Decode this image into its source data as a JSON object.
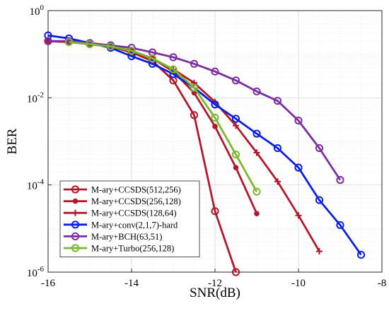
{
  "chart_data": {
    "type": "line",
    "title": "",
    "xlabel": "SNR(dB)",
    "ylabel": "BER",
    "xlim": [
      -16,
      -8
    ],
    "ylim": [
      1e-06,
      1
    ],
    "yscale": "log",
    "grid": true,
    "legend_position": "bottom-left",
    "x_ticks": [
      -16,
      -14,
      -12,
      -10,
      -8
    ],
    "x_tick_labels": [
      "-16",
      "-14",
      "-12",
      "-10",
      "-8"
    ],
    "y_ticks": [
      1e-06,
      0.0001,
      0.01,
      1
    ],
    "y_tick_labels": [
      {
        "base": "10",
        "exp": "-6"
      },
      {
        "base": "10",
        "exp": "-4"
      },
      {
        "base": "10",
        "exp": "-2"
      },
      {
        "base": "10",
        "exp": "0"
      }
    ],
    "series": [
      {
        "name": "M-ary+CCSDS(512,256)",
        "color": "#b2182b",
        "marker": "circle-open",
        "x": [
          -16,
          -15.5,
          -15,
          -14.5,
          -14,
          -13.5,
          -13,
          -12.5,
          -12,
          -11.5
        ],
        "y": [
          0.2,
          0.19,
          0.17,
          0.15,
          0.11,
          0.07,
          0.025,
          0.004,
          2.5e-05,
          1e-06
        ]
      },
      {
        "name": "M-ary+CCSDS(256,128)",
        "color": "#b2182b",
        "marker": "dot",
        "x": [
          -16,
          -15.5,
          -15,
          -14.5,
          -14,
          -13.5,
          -13,
          -12.5,
          -12,
          -11.5,
          -11
        ],
        "y": [
          0.2,
          0.19,
          0.17,
          0.15,
          0.12,
          0.08,
          0.04,
          0.013,
          0.0022,
          0.00025,
          2.2e-05
        ]
      },
      {
        "name": "M-ary+CCSDS(128,64)",
        "color": "#b2182b",
        "marker": "plus",
        "x": [
          -16,
          -15.5,
          -15,
          -14.5,
          -14,
          -13.5,
          -13,
          -12.5,
          -12,
          -11.5,
          -11,
          -10.5,
          -10,
          -9.5
        ],
        "y": [
          0.2,
          0.19,
          0.17,
          0.15,
          0.12,
          0.08,
          0.045,
          0.022,
          0.008,
          0.0023,
          0.00055,
          0.00012,
          2e-05,
          3e-06
        ]
      },
      {
        "name": "M-ary+conv(2,1,7)-hard",
        "color": "#0a1fe0",
        "marker": "circle-open",
        "x": [
          -16,
          -15.5,
          -15,
          -14.5,
          -14,
          -13.5,
          -13,
          -12.5,
          -12,
          -11.5,
          -11,
          -10.5,
          -10,
          -9.5,
          -9,
          -8.5
        ],
        "y": [
          0.27,
          0.23,
          0.18,
          0.14,
          0.09,
          0.06,
          0.035,
          0.017,
          0.007,
          0.0033,
          0.0015,
          0.0007,
          0.00025,
          4.5e-05,
          1.2e-05,
          2.5e-06
        ]
      },
      {
        "name": "M-ary+BCH(63,51)",
        "color": "#7b2fa0",
        "marker": "circle-open",
        "x": [
          -16,
          -15.5,
          -15,
          -14.5,
          -14,
          -13.5,
          -13,
          -12.5,
          -12,
          -11.5,
          -11,
          -10.5,
          -10,
          -9.5,
          -9
        ],
        "y": [
          0.2,
          0.2,
          0.18,
          0.16,
          0.14,
          0.11,
          0.085,
          0.06,
          0.04,
          0.025,
          0.014,
          0.0085,
          0.003,
          0.0007,
          0.00013
        ]
      },
      {
        "name": "M-ary+Turbo(256,128)",
        "color": "#7cb82f",
        "marker": "circle-open",
        "x": [
          -15.5,
          -15,
          -14.5,
          -14,
          -13.5,
          -13,
          -12.5,
          -12,
          -11.5,
          -11
        ],
        "y": [
          0.19,
          0.17,
          0.15,
          0.12,
          0.08,
          0.045,
          0.017,
          0.0035,
          0.0005,
          7e-05
        ]
      }
    ]
  }
}
